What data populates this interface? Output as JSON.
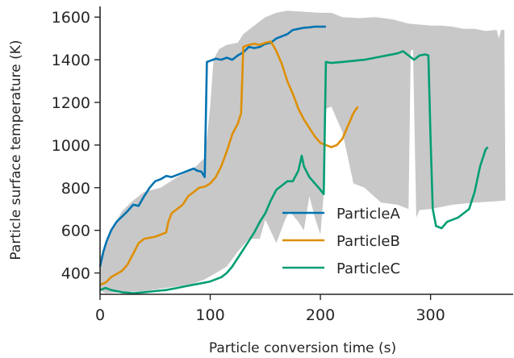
{
  "chart_data": {
    "type": "line",
    "xlabel": "Particle conversion time (s)",
    "ylabel": "Particle surface temperature (K)",
    "xlim": [
      0,
      375
    ],
    "ylim": [
      300,
      1650
    ],
    "xticks": [
      0,
      100,
      200,
      300
    ],
    "yticks": [
      400,
      600,
      800,
      1000,
      1200,
      1400,
      1600
    ],
    "grid": false,
    "legend_position": "lower-right",
    "band": {
      "color": "#c8c8c8",
      "upper": [
        [
          0,
          470
        ],
        [
          10,
          600
        ],
        [
          20,
          690
        ],
        [
          30,
          740
        ],
        [
          40,
          780
        ],
        [
          55,
          800
        ],
        [
          70,
          850
        ],
        [
          85,
          890
        ],
        [
          95,
          940
        ],
        [
          100,
          1180
        ],
        [
          103,
          1400
        ],
        [
          108,
          1450
        ],
        [
          115,
          1470
        ],
        [
          125,
          1480
        ],
        [
          130,
          1520
        ],
        [
          140,
          1560
        ],
        [
          150,
          1600
        ],
        [
          160,
          1620
        ],
        [
          170,
          1630
        ],
        [
          185,
          1625
        ],
        [
          200,
          1620
        ],
        [
          210,
          1620
        ],
        [
          220,
          1600
        ],
        [
          235,
          1595
        ],
        [
          250,
          1600
        ],
        [
          265,
          1590
        ],
        [
          280,
          1570
        ],
        [
          300,
          1560
        ],
        [
          310,
          1560
        ],
        [
          320,
          1555
        ],
        [
          330,
          1545
        ],
        [
          340,
          1545
        ],
        [
          350,
          1535
        ],
        [
          360,
          1540
        ],
        [
          362,
          1500
        ],
        [
          364,
          1540
        ],
        [
          367,
          1540
        ],
        [
          368,
          740
        ]
      ],
      "lower": [
        [
          368,
          740
        ],
        [
          355,
          735
        ],
        [
          340,
          730
        ],
        [
          320,
          720
        ],
        [
          310,
          710
        ],
        [
          300,
          700
        ],
        [
          290,
          695
        ],
        [
          287,
          660
        ],
        [
          284,
          1450
        ],
        [
          282,
          1440
        ],
        [
          280,
          700
        ],
        [
          270,
          720
        ],
        [
          255,
          730
        ],
        [
          240,
          800
        ],
        [
          230,
          820
        ],
        [
          220,
          1060
        ],
        [
          210,
          1180
        ],
        [
          205,
          1170
        ],
        [
          203,
          770
        ],
        [
          200,
          580
        ],
        [
          195,
          660
        ],
        [
          190,
          760
        ],
        [
          185,
          600
        ],
        [
          180,
          640
        ],
        [
          172,
          690
        ],
        [
          168,
          650
        ],
        [
          160,
          540
        ],
        [
          150,
          650
        ],
        [
          145,
          560
        ],
        [
          135,
          560
        ],
        [
          125,
          500
        ],
        [
          115,
          430
        ],
        [
          105,
          400
        ],
        [
          95,
          370
        ],
        [
          85,
          350
        ],
        [
          75,
          340
        ],
        [
          60,
          330
        ],
        [
          40,
          315
        ],
        [
          20,
          310
        ],
        [
          5,
          305
        ],
        [
          0,
          320
        ]
      ]
    },
    "series": [
      {
        "name": "ParticleA",
        "color": "#0173b2",
        "points": [
          [
            0,
            430
          ],
          [
            3,
            500
          ],
          [
            6,
            550
          ],
          [
            10,
            600
          ],
          [
            15,
            640
          ],
          [
            20,
            665
          ],
          [
            25,
            690
          ],
          [
            30,
            720
          ],
          [
            35,
            715
          ],
          [
            40,
            760
          ],
          [
            45,
            800
          ],
          [
            50,
            830
          ],
          [
            55,
            840
          ],
          [
            60,
            855
          ],
          [
            65,
            850
          ],
          [
            70,
            860
          ],
          [
            75,
            870
          ],
          [
            80,
            880
          ],
          [
            85,
            890
          ],
          [
            88,
            880
          ],
          [
            92,
            875
          ],
          [
            95,
            850
          ],
          [
            97,
            1390
          ],
          [
            100,
            1395
          ],
          [
            105,
            1405
          ],
          [
            110,
            1400
          ],
          [
            115,
            1410
          ],
          [
            120,
            1400
          ],
          [
            125,
            1420
          ],
          [
            130,
            1435
          ],
          [
            135,
            1460
          ],
          [
            140,
            1455
          ],
          [
            145,
            1460
          ],
          [
            150,
            1475
          ],
          [
            155,
            1480
          ],
          [
            160,
            1500
          ],
          [
            165,
            1510
          ],
          [
            170,
            1520
          ],
          [
            175,
            1540
          ],
          [
            180,
            1545
          ],
          [
            185,
            1550
          ],
          [
            190,
            1552
          ],
          [
            195,
            1555
          ],
          [
            200,
            1555
          ],
          [
            205,
            1555
          ]
        ]
      },
      {
        "name": "ParticleB",
        "color": "#de8f05",
        "points": [
          [
            0,
            345
          ],
          [
            5,
            355
          ],
          [
            10,
            380
          ],
          [
            15,
            395
          ],
          [
            20,
            410
          ],
          [
            25,
            440
          ],
          [
            30,
            490
          ],
          [
            35,
            540
          ],
          [
            40,
            560
          ],
          [
            45,
            565
          ],
          [
            50,
            570
          ],
          [
            55,
            580
          ],
          [
            60,
            590
          ],
          [
            62,
            640
          ],
          [
            65,
            680
          ],
          [
            70,
            700
          ],
          [
            75,
            720
          ],
          [
            80,
            760
          ],
          [
            85,
            780
          ],
          [
            90,
            800
          ],
          [
            95,
            805
          ],
          [
            100,
            820
          ],
          [
            105,
            850
          ],
          [
            110,
            900
          ],
          [
            115,
            970
          ],
          [
            120,
            1050
          ],
          [
            125,
            1100
          ],
          [
            128,
            1150
          ],
          [
            130,
            1460
          ],
          [
            135,
            1470
          ],
          [
            140,
            1475
          ],
          [
            145,
            1470
          ],
          [
            150,
            1480
          ],
          [
            155,
            1485
          ],
          [
            158,
            1460
          ],
          [
            160,
            1440
          ],
          [
            165,
            1380
          ],
          [
            170,
            1300
          ],
          [
            175,
            1240
          ],
          [
            180,
            1170
          ],
          [
            185,
            1120
          ],
          [
            190,
            1080
          ],
          [
            195,
            1040
          ],
          [
            200,
            1010
          ],
          [
            205,
            1000
          ],
          [
            210,
            990
          ],
          [
            215,
            1000
          ],
          [
            220,
            1030
          ],
          [
            225,
            1090
          ],
          [
            230,
            1150
          ],
          [
            234,
            1180
          ]
        ]
      },
      {
        "name": "ParticleC",
        "color": "#029e73",
        "points": [
          [
            0,
            320
          ],
          [
            5,
            330
          ],
          [
            10,
            320
          ],
          [
            20,
            310
          ],
          [
            30,
            305
          ],
          [
            40,
            310
          ],
          [
            50,
            315
          ],
          [
            60,
            320
          ],
          [
            70,
            330
          ],
          [
            80,
            340
          ],
          [
            90,
            350
          ],
          [
            100,
            360
          ],
          [
            110,
            380
          ],
          [
            115,
            400
          ],
          [
            120,
            430
          ],
          [
            125,
            470
          ],
          [
            130,
            510
          ],
          [
            135,
            550
          ],
          [
            140,
            590
          ],
          [
            145,
            640
          ],
          [
            150,
            680
          ],
          [
            155,
            740
          ],
          [
            160,
            790
          ],
          [
            165,
            810
          ],
          [
            170,
            830
          ],
          [
            175,
            830
          ],
          [
            180,
            880
          ],
          [
            183,
            950
          ],
          [
            185,
            900
          ],
          [
            190,
            850
          ],
          [
            195,
            820
          ],
          [
            200,
            790
          ],
          [
            203,
            770
          ],
          [
            205,
            1390
          ],
          [
            210,
            1385
          ],
          [
            220,
            1390
          ],
          [
            230,
            1395
          ],
          [
            240,
            1400
          ],
          [
            250,
            1410
          ],
          [
            260,
            1420
          ],
          [
            270,
            1430
          ],
          [
            275,
            1440
          ],
          [
            280,
            1420
          ],
          [
            285,
            1400
          ],
          [
            290,
            1420
          ],
          [
            295,
            1425
          ],
          [
            298,
            1420
          ],
          [
            300,
            1030
          ],
          [
            302,
            700
          ],
          [
            305,
            620
          ],
          [
            310,
            610
          ],
          [
            315,
            640
          ],
          [
            320,
            650
          ],
          [
            325,
            660
          ],
          [
            330,
            680
          ],
          [
            335,
            700
          ],
          [
            340,
            780
          ],
          [
            345,
            900
          ],
          [
            350,
            980
          ],
          [
            352,
            990
          ]
        ]
      }
    ]
  }
}
